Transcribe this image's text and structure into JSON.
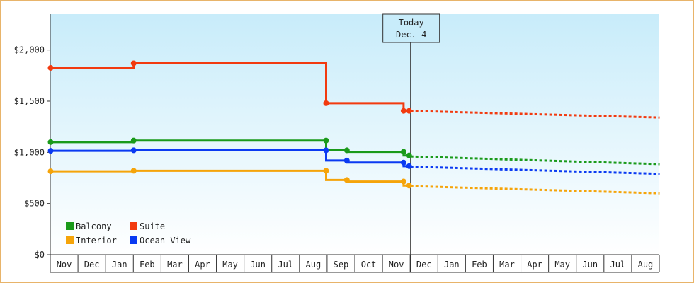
{
  "chart_data": {
    "type": "line",
    "step": true,
    "ylim": [
      0,
      2350
    ],
    "y_ticks": [
      0,
      500,
      1000,
      1500,
      2000
    ],
    "y_tick_labels": [
      "$0",
      "$500",
      "$1,000",
      "$1,500",
      "$2,000"
    ],
    "x_months": [
      "Nov",
      "Dec",
      "Jan",
      "Feb",
      "Mar",
      "Apr",
      "May",
      "Jun",
      "Jul",
      "Aug",
      "Sep",
      "Oct",
      "Nov",
      "Dec",
      "Jan",
      "Feb",
      "Mar",
      "Apr",
      "May",
      "Jun",
      "Jul",
      "Aug"
    ],
    "x_start_index": 0,
    "today": {
      "line1": "Today",
      "line2": "Dec. 4",
      "x": 13.0
    },
    "background_gradient": [
      "#c8ecfa",
      "#ffffff"
    ],
    "grid": false,
    "legend": {
      "placement": "bottom-left"
    },
    "series": [
      {
        "name": "Balcony",
        "color": "#1a9a1a",
        "points": [
          {
            "x": 0.0,
            "y": 1100
          },
          {
            "x": 3.0,
            "y": 1100
          },
          {
            "x": 3.0,
            "y": 1115
          },
          {
            "x": 9.95,
            "y": 1115
          },
          {
            "x": 9.95,
            "y": 1020
          },
          {
            "x": 10.7,
            "y": 1020
          },
          {
            "x": 10.7,
            "y": 1005
          },
          {
            "x": 12.75,
            "y": 1005
          },
          {
            "x": 12.75,
            "y": 970
          },
          {
            "x": 12.95,
            "y": 970
          }
        ],
        "markers": [
          0.0,
          3.0,
          9.95,
          10.7,
          12.75,
          12.95
        ],
        "marker_values": [
          1100,
          1115,
          1115,
          1020,
          1005,
          970
        ],
        "projection": [
          {
            "x": 13.0,
            "y": 960
          },
          {
            "x": 22.0,
            "y": 885
          }
        ]
      },
      {
        "name": "Suite",
        "color": "#f23a0f",
        "points": [
          {
            "x": 0.0,
            "y": 1825
          },
          {
            "x": 3.0,
            "y": 1825
          },
          {
            "x": 3.0,
            "y": 1870
          },
          {
            "x": 9.95,
            "y": 1870
          },
          {
            "x": 9.95,
            "y": 1480
          },
          {
            "x": 12.75,
            "y": 1480
          },
          {
            "x": 12.75,
            "y": 1405
          },
          {
            "x": 12.95,
            "y": 1405
          }
        ],
        "markers": [
          0.0,
          3.0,
          9.95,
          12.75,
          12.95
        ],
        "marker_values": [
          1825,
          1870,
          1480,
          1405,
          1405
        ],
        "projection": [
          {
            "x": 13.0,
            "y": 1405
          },
          {
            "x": 22.0,
            "y": 1340
          }
        ]
      },
      {
        "name": "Interior",
        "color": "#f5a40a",
        "points": [
          {
            "x": 0.0,
            "y": 815
          },
          {
            "x": 3.0,
            "y": 815
          },
          {
            "x": 3.0,
            "y": 820
          },
          {
            "x": 9.95,
            "y": 820
          },
          {
            "x": 9.95,
            "y": 730
          },
          {
            "x": 10.7,
            "y": 730
          },
          {
            "x": 10.7,
            "y": 715
          },
          {
            "x": 12.75,
            "y": 715
          },
          {
            "x": 12.75,
            "y": 675
          },
          {
            "x": 12.95,
            "y": 675
          }
        ],
        "markers": [
          0.0,
          3.0,
          9.95,
          10.7,
          12.75,
          12.95
        ],
        "marker_values": [
          815,
          820,
          820,
          730,
          715,
          675
        ],
        "projection": [
          {
            "x": 13.0,
            "y": 670
          },
          {
            "x": 22.0,
            "y": 600
          }
        ]
      },
      {
        "name": "Ocean View",
        "color": "#0a3af2",
        "points": [
          {
            "x": 0.0,
            "y": 1015
          },
          {
            "x": 3.0,
            "y": 1015
          },
          {
            "x": 3.0,
            "y": 1020
          },
          {
            "x": 9.95,
            "y": 1020
          },
          {
            "x": 9.95,
            "y": 920
          },
          {
            "x": 10.7,
            "y": 920
          },
          {
            "x": 10.7,
            "y": 900
          },
          {
            "x": 12.75,
            "y": 900
          },
          {
            "x": 12.75,
            "y": 865
          },
          {
            "x": 12.95,
            "y": 865
          }
        ],
        "markers": [
          0.0,
          3.0,
          9.95,
          10.7,
          12.75,
          12.95
        ],
        "marker_values": [
          1015,
          1020,
          1020,
          920,
          900,
          865
        ],
        "projection": [
          {
            "x": 13.0,
            "y": 860
          },
          {
            "x": 22.0,
            "y": 790
          }
        ]
      }
    ]
  }
}
